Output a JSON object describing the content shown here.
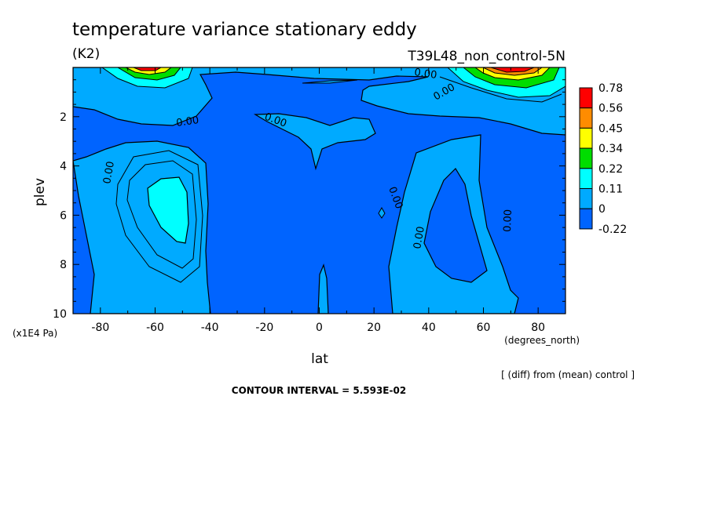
{
  "header": {
    "title": "temperature variance stationary eddy",
    "units": "(K2)",
    "experiment": "T39L48_non_control-5N"
  },
  "footer": {
    "diff_note": "[ (diff) from (mean) control ]",
    "contour_interval": "CONTOUR INTERVAL = 5.593E-02"
  },
  "chart_data": {
    "type": "heatmap",
    "title": "temperature variance stationary eddy",
    "xlabel": "lat",
    "x_units": "(degrees_north)",
    "ylabel": "plev",
    "y_units": "(x1E4 Pa)",
    "xlim": [
      -90,
      90
    ],
    "ylim": [
      10,
      0
    ],
    "x_ticks": [
      -80,
      -60,
      -40,
      -20,
      0,
      20,
      40,
      60,
      80
    ],
    "x_tick_labels": [
      "-80",
      "-60",
      "-40",
      "-20",
      "0",
      "20",
      "40",
      "60",
      "80"
    ],
    "y_ticks": [
      2,
      4,
      6,
      8,
      10
    ],
    "y_tick_labels": [
      "2",
      "4",
      "6",
      "8",
      "10"
    ],
    "colorbar": {
      "levels": [
        "0.78",
        "0.56",
        "0.45",
        "0.34",
        "0.22",
        "0.11",
        "0",
        "-0.22"
      ],
      "colors": [
        "#ff0000",
        "#ff8c00",
        "#ffff00",
        "#00dd00",
        "#00ffff",
        "#00aaff",
        "#0064ff"
      ]
    },
    "contour_labels": [
      "0.00",
      "0.00",
      "0.00",
      "0.00",
      "0.00",
      "0.00",
      "0.00",
      "0.00",
      "0.00",
      "0.00"
    ],
    "contour_interval": 0.05593
  }
}
